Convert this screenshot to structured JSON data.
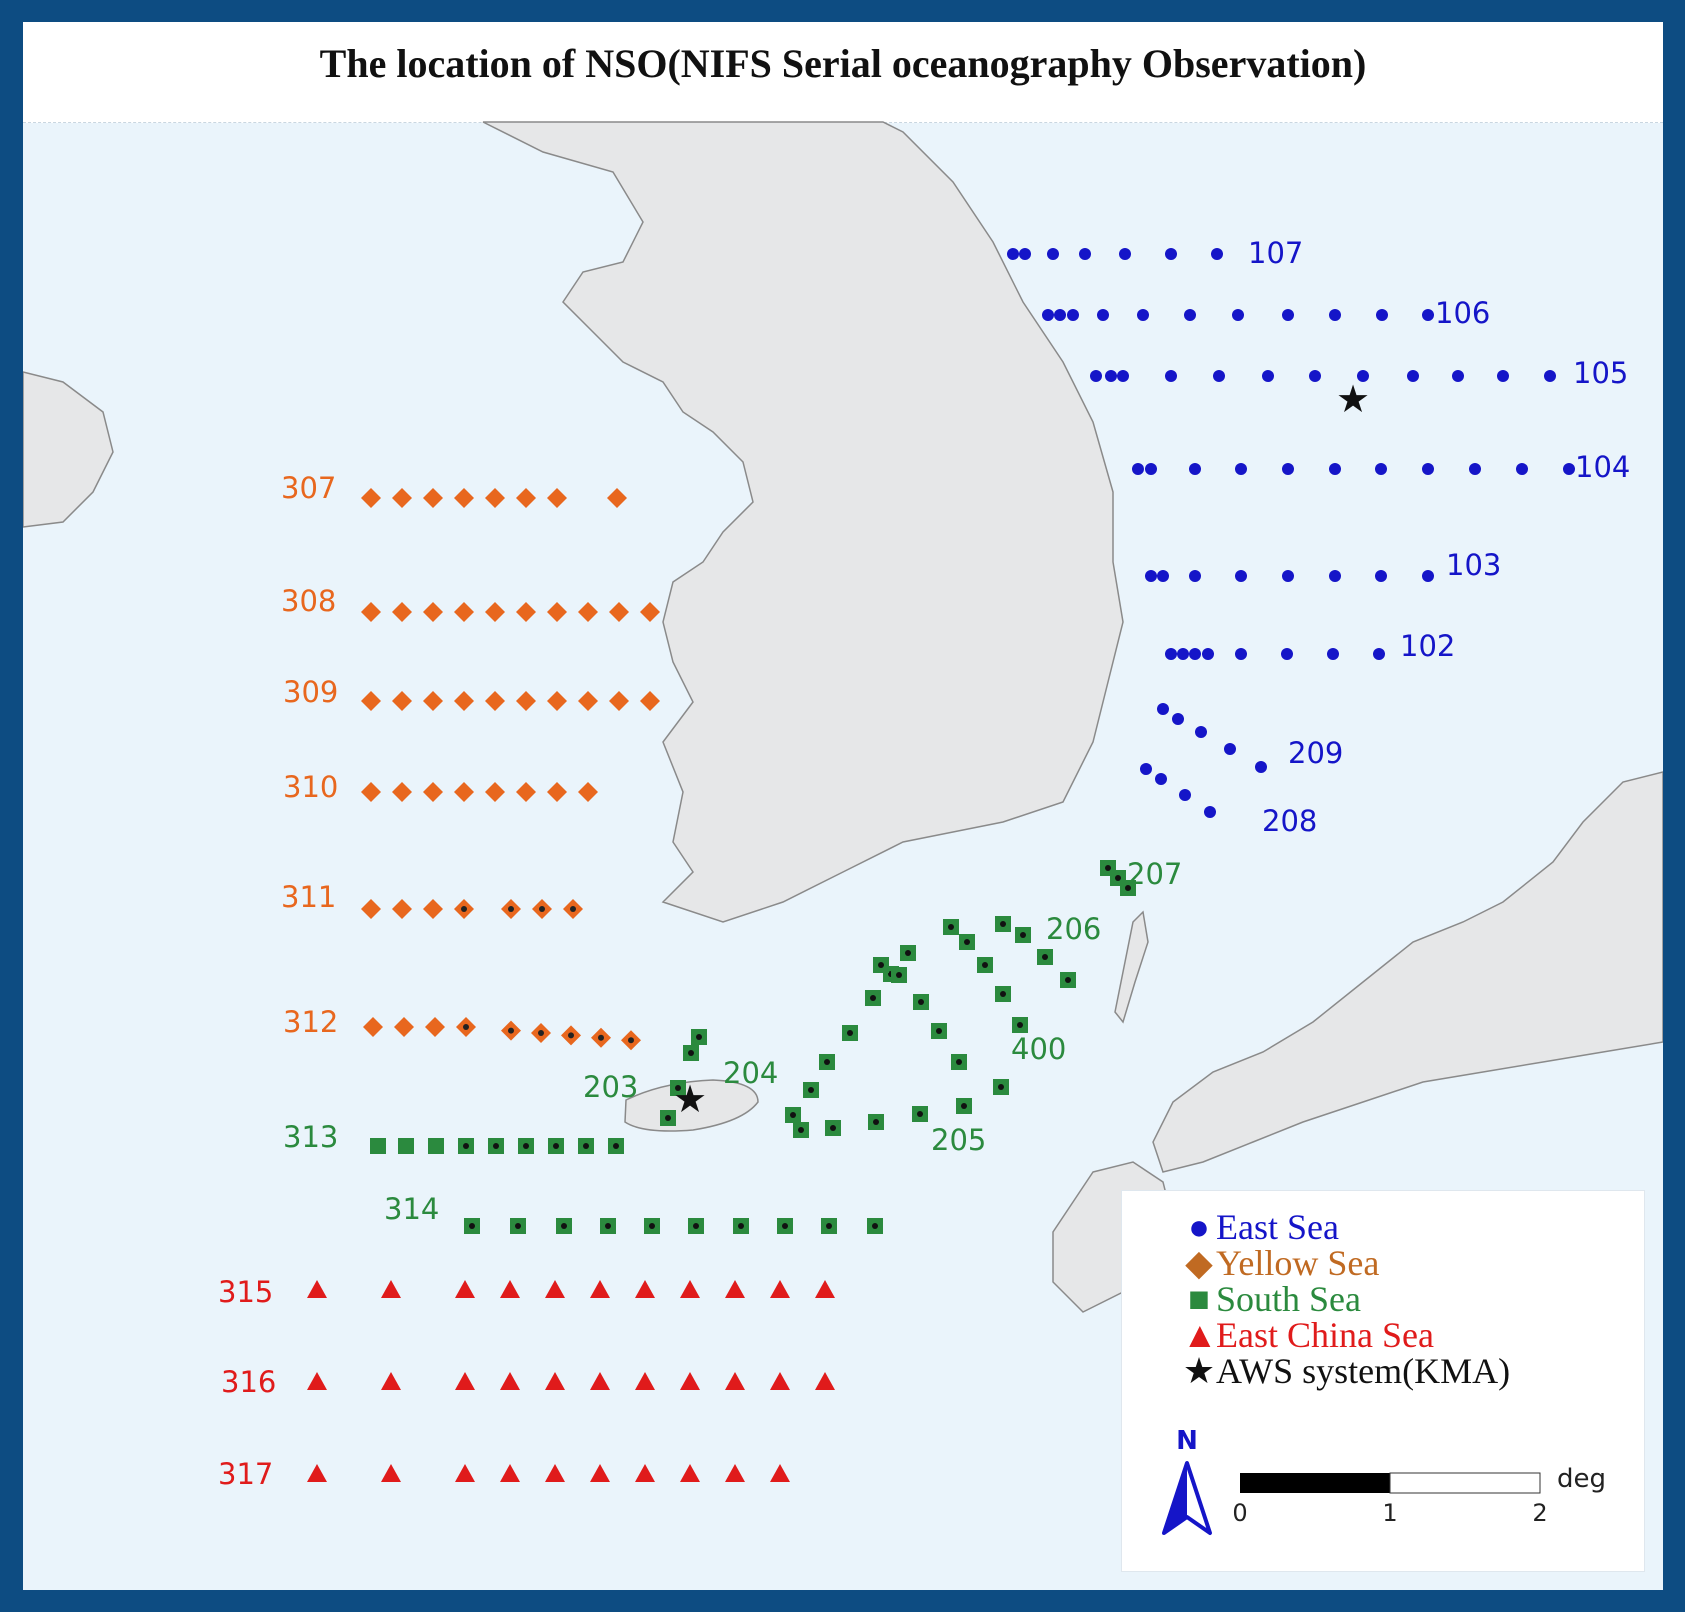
{
  "title": "The location of NSO(NIFS Serial oceanography Observation)",
  "colors": {
    "east_sea": "#1515c8",
    "yellow_sea": "#e8671e",
    "south_sea": "#2b8a3e",
    "east_china_sea": "#e01b1b",
    "aws": "#111111",
    "land": "#e6e7e8",
    "sea": "#eaf4fb"
  },
  "lines": {
    "east_sea": [
      "107",
      "106",
      "105",
      "104",
      "103",
      "102",
      "209",
      "208"
    ],
    "yellow_sea": [
      "307",
      "308",
      "309",
      "310",
      "311",
      "312"
    ],
    "south_sea": [
      "207",
      "206",
      "400",
      "205",
      "204",
      "203",
      "313",
      "314"
    ],
    "east_china_sea": [
      "315",
      "316",
      "317"
    ]
  },
  "legend": {
    "east_sea": "East Sea",
    "yellow_sea": "Yellow Sea",
    "south_sea": "South Sea",
    "east_china_sea": "East China Sea",
    "aws": "AWS system(KMA)"
  },
  "north_label": "N",
  "scale": {
    "ticks": [
      "0",
      "1",
      "2"
    ],
    "unit": "deg"
  }
}
